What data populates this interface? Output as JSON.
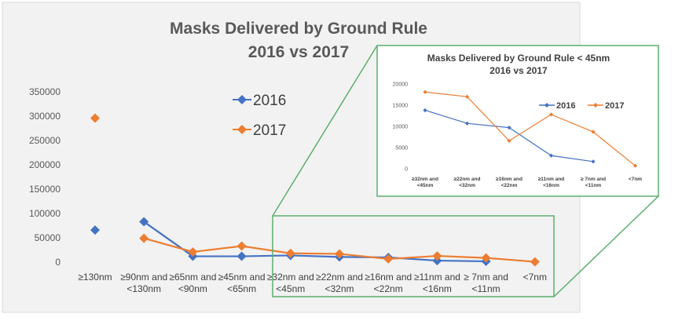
{
  "chart_data": [
    {
      "type": "line",
      "title": "Masks Delivered by Ground Rule",
      "subtitle": "2016 vs 2017",
      "categories": [
        [
          "≥130nm"
        ],
        [
          "≥90nm and",
          "<130nm"
        ],
        [
          "≥65nm and",
          "<90nm"
        ],
        [
          "≥45nm and",
          "<65nm"
        ],
        [
          "≥32nm and",
          "<45nm"
        ],
        [
          "≥22nm and",
          "<32nm"
        ],
        [
          "≥16nm and",
          "<22nm"
        ],
        [
          "≥11nm and",
          "<16nm"
        ],
        [
          "≥ 7nm and",
          "<11nm"
        ],
        [
          "<7nm"
        ]
      ],
      "series": [
        {
          "name": "2016",
          "color": "#4472C4",
          "marker": "diamond",
          "values": [
            66000,
            83000,
            12000,
            12000,
            13800,
            10700,
            9700,
            3100,
            1700,
            null
          ]
        },
        {
          "name": "2017",
          "color": "#ED7D31",
          "marker": "diamond",
          "values": [
            296000,
            49000,
            21000,
            33000,
            18100,
            17000,
            6600,
            12800,
            8700,
            700
          ]
        }
      ],
      "segments": [
        {
          "series": "2016",
          "from": 1,
          "to": 9
        },
        {
          "series": "2017",
          "from": 1,
          "to": 9
        }
      ],
      "yticks": [
        0,
        50000,
        100000,
        150000,
        200000,
        250000,
        300000,
        350000
      ],
      "ylim": [
        0,
        350000
      ],
      "grid": false,
      "legend": "center"
    },
    {
      "type": "line",
      "title": "Masks Delivered by Ground Rule < 45nm",
      "subtitle": "2016 vs 2017",
      "categories": [
        [
          "≥32nm and",
          "<45nm"
        ],
        [
          "≥22nm and",
          "<32nm"
        ],
        [
          "≥16nm and",
          "<22nm"
        ],
        [
          "≥11nm and",
          "<16nm"
        ],
        [
          "≥ 7nm and",
          "<11nm"
        ],
        [
          "<7nm"
        ]
      ],
      "series": [
        {
          "name": "2016",
          "color": "#4472C4",
          "marker": "diamond",
          "values": [
            13800,
            10700,
            9700,
            3100,
            1700,
            null
          ]
        },
        {
          "name": "2017",
          "color": "#ED7D31",
          "marker": "diamond",
          "values": [
            18100,
            17000,
            6600,
            12800,
            8700,
            700
          ]
        }
      ],
      "yticks": [
        0,
        5000,
        10000,
        15000,
        20000
      ],
      "ylim": [
        0,
        20000
      ],
      "grid": false,
      "legend": "right"
    }
  ],
  "colors": {
    "zoom_frame": "#5BAF6E",
    "panel_bg": "#F2F2F2",
    "inset_bg": "#FFFFFF"
  }
}
